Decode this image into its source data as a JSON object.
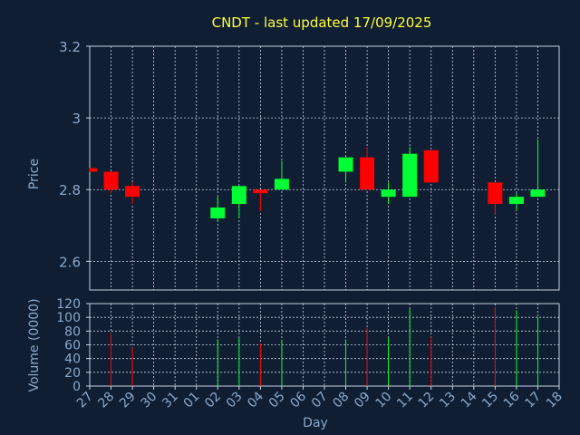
{
  "title": "CNDT - last updated 17/09/2025",
  "colors": {
    "background": "#0f1e33",
    "title": "#ffff33",
    "axis_text": "#8aa9cc",
    "grid": "#c8d3e0",
    "up": "#00ff33",
    "down": "#ff0000"
  },
  "chart_data": [
    {
      "type": "candlestick",
      "ylabel": "Price",
      "ylim": [
        2.52,
        3.2
      ],
      "yticks": [
        "2.6",
        "2.8",
        "3",
        "3.2"
      ],
      "ytick_values": [
        2.6,
        2.8,
        3.0,
        3.2
      ],
      "grid": true,
      "candles": [
        {
          "x": 0,
          "open": 2.86,
          "high": 2.86,
          "low": 2.85,
          "close": 2.85
        },
        {
          "x": 1,
          "open": 2.85,
          "high": 2.85,
          "low": 2.79,
          "close": 2.8
        },
        {
          "x": 2,
          "open": 2.81,
          "high": 2.82,
          "low": 2.76,
          "close": 2.78
        },
        {
          "x": 6,
          "open": 2.72,
          "high": 2.78,
          "low": 2.71,
          "close": 2.75
        },
        {
          "x": 7,
          "open": 2.76,
          "high": 2.81,
          "low": 2.72,
          "close": 2.81
        },
        {
          "x": 8,
          "open": 2.8,
          "high": 2.8,
          "low": 2.74,
          "close": 2.79
        },
        {
          "x": 9,
          "open": 2.8,
          "high": 2.88,
          "low": 2.8,
          "close": 2.83
        },
        {
          "x": 12,
          "open": 2.85,
          "high": 2.89,
          "low": 2.82,
          "close": 2.89
        },
        {
          "x": 13,
          "open": 2.89,
          "high": 2.92,
          "low": 2.8,
          "close": 2.8
        },
        {
          "x": 14,
          "open": 2.78,
          "high": 2.82,
          "low": 2.76,
          "close": 2.8
        },
        {
          "x": 15,
          "open": 2.78,
          "high": 2.92,
          "low": 2.78,
          "close": 2.9
        },
        {
          "x": 16,
          "open": 2.91,
          "high": 2.91,
          "low": 2.82,
          "close": 2.82
        },
        {
          "x": 19,
          "open": 2.82,
          "high": 2.82,
          "low": 2.73,
          "close": 2.76
        },
        {
          "x": 20,
          "open": 2.76,
          "high": 2.79,
          "low": 2.74,
          "close": 2.78
        },
        {
          "x": 21,
          "open": 2.78,
          "high": 2.94,
          "low": 2.78,
          "close": 2.8
        }
      ]
    },
    {
      "type": "bar",
      "ylabel": "Volume (0000)",
      "xlabel": "Day",
      "ylim": [
        0,
        120
      ],
      "yticks": [
        "0",
        "20",
        "40",
        "60",
        "80",
        "100",
        "120"
      ],
      "ytick_values": [
        0,
        20,
        40,
        60,
        80,
        100,
        120
      ],
      "categories": [
        "27",
        "28",
        "29",
        "30",
        "31",
        "01",
        "02",
        "03",
        "04",
        "05",
        "06",
        "07",
        "08",
        "09",
        "10",
        "11",
        "12",
        "13",
        "14",
        "15",
        "16",
        "17",
        "18"
      ],
      "bars": [
        {
          "x": 1,
          "value": 78,
          "dir": "down"
        },
        {
          "x": 2,
          "value": 56,
          "dir": "down"
        },
        {
          "x": 6,
          "value": 68,
          "dir": "up"
        },
        {
          "x": 7,
          "value": 70,
          "dir": "up"
        },
        {
          "x": 8,
          "value": 62,
          "dir": "down"
        },
        {
          "x": 9,
          "value": 66,
          "dir": "up"
        },
        {
          "x": 12,
          "value": 68,
          "dir": "up"
        },
        {
          "x": 13,
          "value": 85,
          "dir": "down"
        },
        {
          "x": 14,
          "value": 70,
          "dir": "up"
        },
        {
          "x": 15,
          "value": 112,
          "dir": "up"
        },
        {
          "x": 16,
          "value": 72,
          "dir": "down"
        },
        {
          "x": 19,
          "value": 115,
          "dir": "down"
        },
        {
          "x": 20,
          "value": 110,
          "dir": "up"
        },
        {
          "x": 21,
          "value": 100,
          "dir": "up"
        }
      ]
    }
  ]
}
